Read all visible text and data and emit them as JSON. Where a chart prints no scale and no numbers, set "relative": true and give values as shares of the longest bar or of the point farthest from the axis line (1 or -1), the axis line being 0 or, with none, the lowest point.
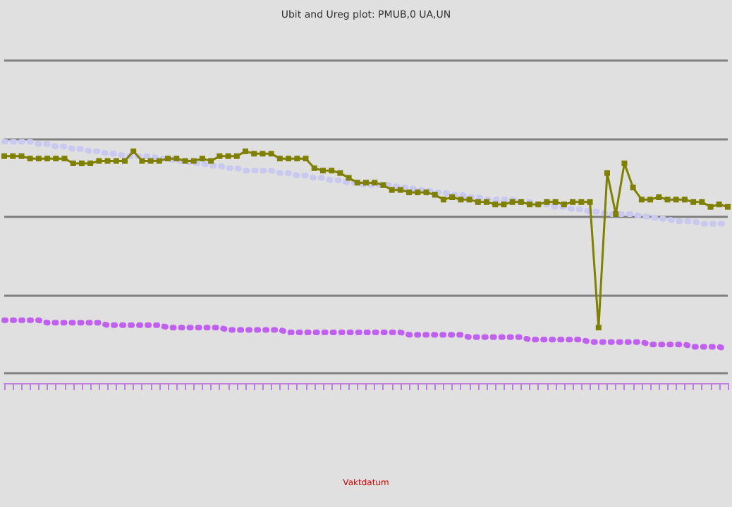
{
  "chart_data": {
    "type": "line",
    "title": "Ubit and Ureg plot: PMUB,0 UA,UN",
    "annotations": [
      "Vaktdatum"
    ],
    "relative": true,
    "grid": "y",
    "categories": [
      null,
      null,
      null,
      null,
      null,
      null,
      null,
      null,
      null,
      null,
      null,
      null,
      null,
      null,
      null,
      null,
      null,
      null,
      null,
      null,
      null,
      null,
      null,
      null,
      null,
      null,
      null,
      null,
      null,
      null,
      null,
      null,
      null,
      null,
      null,
      null,
      null,
      null,
      null,
      null,
      null,
      null,
      null,
      null,
      null,
      null,
      null,
      null,
      null,
      null,
      null,
      null,
      null,
      null,
      null,
      null,
      null,
      null,
      null,
      null,
      null,
      null,
      null,
      null,
      null,
      null,
      null,
      null,
      null,
      null,
      null,
      null,
      null,
      null,
      null,
      null,
      null,
      null,
      null,
      null,
      null,
      null,
      null,
      null,
      null
    ],
    "series": [
      {
        "color": "#c8c8f0",
        "marker": "none",
        "line_style": "dotted",
        "values": [
          1.0,
          1.0,
          1.0,
          1.0,
          0.99,
          0.99,
          0.98,
          0.98,
          0.97,
          0.97,
          0.96,
          0.96,
          0.95,
          0.95,
          0.94,
          0.94,
          0.94,
          0.94,
          0.93,
          0.93,
          0.92,
          0.92,
          0.91,
          0.91,
          0.9,
          0.9,
          0.89,
          0.89,
          0.88,
          0.88,
          0.88,
          0.88,
          0.87,
          0.87,
          0.86,
          0.86,
          0.85,
          0.85,
          0.84,
          0.84,
          0.83,
          0.83,
          0.82,
          0.82,
          0.82,
          0.82,
          0.81,
          0.81,
          0.8,
          0.8,
          0.79,
          0.79,
          0.78,
          0.78,
          0.77,
          0.77,
          0.76,
          0.76,
          0.76,
          0.76,
          0.75,
          0.75,
          0.74,
          0.74,
          0.73,
          0.73,
          0.72,
          0.72,
          0.71,
          0.71,
          0.7,
          0.7,
          0.7,
          0.7,
          0.69,
          0.69,
          0.68,
          0.68,
          0.67,
          0.67,
          0.67,
          0.66,
          0.66,
          0.66,
          0.66
        ]
      },
      {
        "color": "#c060f0",
        "marker": "none",
        "line_style": "dotted",
        "values": [
          0.26,
          0.26,
          0.26,
          0.26,
          0.26,
          0.25,
          0.25,
          0.25,
          0.25,
          0.25,
          0.25,
          0.25,
          0.24,
          0.24,
          0.24,
          0.24,
          0.24,
          0.24,
          0.24,
          0.23,
          0.23,
          0.23,
          0.23,
          0.23,
          0.23,
          0.23,
          0.22,
          0.22,
          0.22,
          0.22,
          0.22,
          0.22,
          0.22,
          0.21,
          0.21,
          0.21,
          0.21,
          0.21,
          0.21,
          0.21,
          0.21,
          0.21,
          0.21,
          0.21,
          0.21,
          0.21,
          0.21,
          0.2,
          0.2,
          0.2,
          0.2,
          0.2,
          0.2,
          0.2,
          0.19,
          0.19,
          0.19,
          0.19,
          0.19,
          0.19,
          0.19,
          0.18,
          0.18,
          0.18,
          0.18,
          0.18,
          0.18,
          0.18,
          0.17,
          0.17,
          0.17,
          0.17,
          0.17,
          0.17,
          0.17,
          0.16,
          0.16,
          0.16,
          0.16,
          0.16,
          0.15,
          0.15,
          0.15,
          0.15,
          0.14
        ]
      },
      {
        "color": "#808000",
        "marker": "square",
        "line_style": "solid",
        "values": [
          0.94,
          0.94,
          0.94,
          0.93,
          0.93,
          0.93,
          0.93,
          0.93,
          0.91,
          0.91,
          0.91,
          0.92,
          0.92,
          0.92,
          0.92,
          0.96,
          0.92,
          0.92,
          0.92,
          0.93,
          0.93,
          0.92,
          0.92,
          0.93,
          0.92,
          0.94,
          0.94,
          0.94,
          0.96,
          0.95,
          0.95,
          0.95,
          0.93,
          0.93,
          0.93,
          0.93,
          0.89,
          0.88,
          0.88,
          0.87,
          0.85,
          0.83,
          0.83,
          0.83,
          0.82,
          0.8,
          0.8,
          0.79,
          0.79,
          0.79,
          0.78,
          0.76,
          0.77,
          0.76,
          0.76,
          0.75,
          0.75,
          0.74,
          0.74,
          0.75,
          0.75,
          0.74,
          0.74,
          0.75,
          0.75,
          0.74,
          0.75,
          0.75,
          0.75,
          0.23,
          0.87,
          0.7,
          0.91,
          0.81,
          0.76,
          0.76,
          0.77,
          0.76,
          0.76,
          0.76,
          0.75,
          0.75,
          0.73,
          0.74,
          0.73
        ]
      }
    ]
  }
}
